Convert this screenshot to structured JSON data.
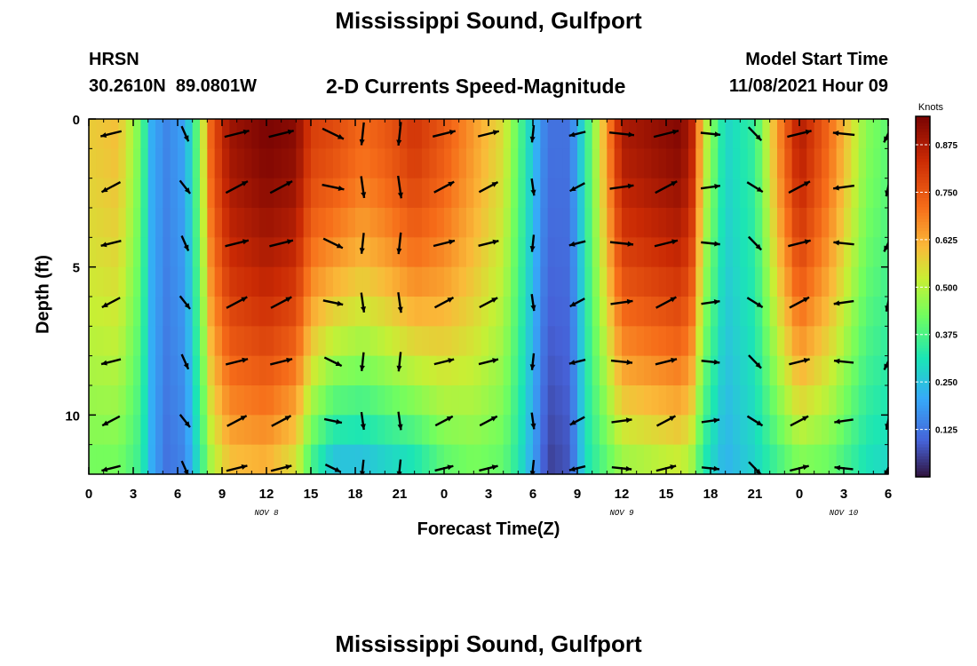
{
  "header": {
    "title": "Mississippi Sound, Gulfport",
    "station": "HRSN",
    "coords": "30.2610N  89.0801W",
    "subtitle": "2-D Currents Speed-Magnitude",
    "model_label": "Model Start Time",
    "model_time": "11/08/2021 Hour 09"
  },
  "footer": {
    "title": "Mississippi Sound, Gulfport"
  },
  "chart_data": {
    "type": "heatmap",
    "title": "2-D Currents Speed-Magnitude",
    "xlabel": "Forecast Time(Z)",
    "ylabel": "Depth (ft)",
    "x_range": [
      0,
      54
    ],
    "y_range": [
      0,
      12
    ],
    "x_ticks": [
      "0",
      "3",
      "6",
      "9",
      "12",
      "15",
      "18",
      "21",
      "0",
      "3",
      "6",
      "9",
      "12",
      "15",
      "18",
      "21",
      "0",
      "3",
      "6"
    ],
    "y_ticks": [
      "0",
      "5",
      "10"
    ],
    "date_labels": [
      {
        "text": "NOV 8",
        "hour": 12
      },
      {
        "text": "NOV 9",
        "hour": 36
      },
      {
        "text": "NOV 10",
        "hour": 51
      }
    ],
    "colorbar": {
      "unit": "Knots",
      "min": 0.0,
      "max": 0.95,
      "ticks": [
        "0.125",
        "0.250",
        "0.375",
        "0.500",
        "0.625",
        "0.750",
        "0.875"
      ],
      "tick_values": [
        0.125,
        0.25,
        0.375,
        0.5,
        0.625,
        0.75,
        0.875
      ]
    },
    "depth_rows": [
      0.5,
      1.5,
      2.5,
      3.5,
      4.5,
      5.5,
      6.5,
      7.5,
      8.5,
      9.5,
      10.5,
      11.5
    ],
    "speed_hour_nodes": [
      0,
      2,
      3.5,
      4.2,
      5.2,
      6.5,
      7.5,
      8.3,
      9.5,
      12,
      14,
      15,
      16.5,
      18.5,
      20,
      22,
      24,
      26,
      28,
      29,
      30,
      31,
      32.5,
      33.5,
      36,
      40,
      40.8,
      41.5,
      43,
      45,
      46.5,
      48,
      50,
      52.5,
      54
    ],
    "speed_surface": [
      0.58,
      0.6,
      0.42,
      0.22,
      0.15,
      0.2,
      0.45,
      0.75,
      0.9,
      0.95,
      0.93,
      0.8,
      0.78,
      0.72,
      0.75,
      0.82,
      0.75,
      0.65,
      0.55,
      0.4,
      0.25,
      0.12,
      0.12,
      0.32,
      0.88,
      0.94,
      0.85,
      0.55,
      0.28,
      0.35,
      0.65,
      0.88,
      0.72,
      0.45,
      0.4
    ],
    "speed_bottom": [
      0.42,
      0.42,
      0.35,
      0.22,
      0.12,
      0.15,
      0.32,
      0.48,
      0.58,
      0.6,
      0.52,
      0.35,
      0.22,
      0.22,
      0.25,
      0.28,
      0.38,
      0.42,
      0.4,
      0.32,
      0.2,
      0.05,
      0.08,
      0.3,
      0.45,
      0.5,
      0.45,
      0.32,
      0.22,
      0.28,
      0.35,
      0.42,
      0.4,
      0.3,
      0.28
    ],
    "arrow_depths": [
      0.5,
      2.3,
      4.2,
      6.2,
      8.2,
      10.2,
      11.8
    ],
    "arrow_hours": [
      1.5,
      6.5,
      10,
      13,
      16.5,
      18.5,
      21,
      24,
      27,
      30,
      33,
      36,
      39,
      42,
      45,
      48,
      51,
      54
    ],
    "arrow_directions_deg": [
      200,
      300,
      20,
      20,
      340,
      270,
      270,
      20,
      20,
      270,
      200,
      0,
      20,
      0,
      320,
      20,
      180,
      250
    ],
    "arrow_length_scale": 1.0
  }
}
